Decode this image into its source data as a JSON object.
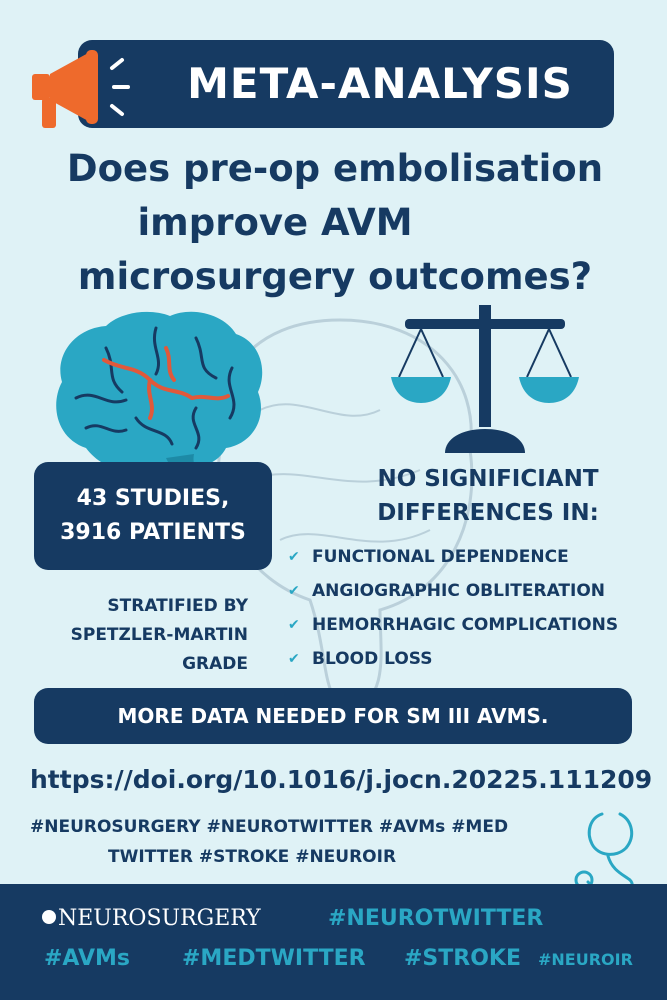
{
  "banner": {
    "title": "META-ANALYSIS",
    "icon": "megaphone-icon"
  },
  "question": {
    "line1": "Does pre-op embolisation",
    "line2": "improve AVM",
    "line3": "microsurgery outcomes?"
  },
  "studies": {
    "line1": "43 STUDIES,",
    "line2": "3916 PATIENTS"
  },
  "stratified": {
    "line1": "STRATIFIED BY",
    "line2": "SPETZLER-MARTIN",
    "line3": "GRADE"
  },
  "no_difference": {
    "line1": "NO SIGNIFICIANT",
    "line2": "DIFFERENCES IN:",
    "items": [
      "FUNCTIONAL DEPENDENCE",
      "ANGIOGRAPHIC OBLITERATION",
      "HEMORRHAGIC COMPLICATIONS",
      "BLOOD LOSS"
    ]
  },
  "conclusion": "MORE DATA NEEDED FOR SM III AVMS.",
  "doi": "https://doi.org/10.1016/j.jocn.20225.111209",
  "tags": {
    "line1": "#NEUROSURGERY #NEUROTWITTER #AVMs #MED",
    "line2": "TWITTER #STROKE #NEUROIR"
  },
  "footer": {
    "neurosurgery": "NEUROSURGERY",
    "neurotwitter": "#NEUROTWITTER",
    "avms": "#AVMs",
    "medtwitter": "#MEDTWITTER",
    "stroke": "#STROKE",
    "neuroir": "#NEUROIR"
  },
  "colors": {
    "background": "#dff2f6",
    "navy": "#163a62",
    "teal": "#2aa7c4",
    "orange": "#ee6a2c",
    "vessel": "#e0593b"
  }
}
